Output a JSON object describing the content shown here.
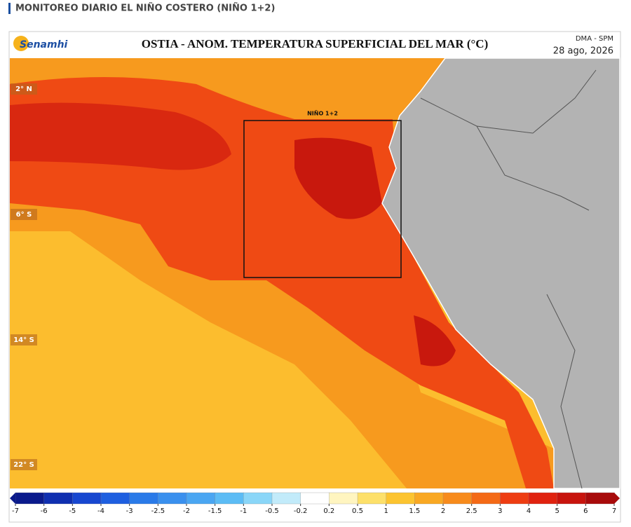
{
  "header": {
    "title": "MONITOREO DIARIO EL NIÑO COSTERO (NIÑO 1+2)"
  },
  "map": {
    "logo": "Senamhi",
    "title": "OSTIA - ANOM. TEMPERATURA SUPERFICIAL DEL MAR (°C)",
    "source": "DMA - SPM",
    "date": "28 ago, 2026",
    "region_label": "NIÑO 1+2",
    "lat_labels": [
      "2° N",
      "6° S",
      "14° S",
      "22° S"
    ]
  },
  "colorbar": {
    "ticks": [
      -7,
      -6,
      -5,
      -4,
      -3,
      -2.5,
      -2,
      -1.5,
      -1,
      -0.5,
      -0.2,
      0.2,
      0.5,
      1,
      1.5,
      2,
      2.5,
      3,
      4,
      5,
      6,
      7
    ],
    "colors": [
      "#0a1a8c",
      "#0f2fb0",
      "#1747d0",
      "#1e5fe0",
      "#2a7ae8",
      "#3a90ee",
      "#4aa6f2",
      "#5cbcf5",
      "#8ad6f8",
      "#c2ebfa",
      "#ffffff",
      "#fff5c0",
      "#fde06a",
      "#fcc430",
      "#f9a823",
      "#f78b1c",
      "#f46a16",
      "#ee3d12",
      "#e0220f",
      "#c8140d",
      "#a80b0b"
    ]
  }
}
